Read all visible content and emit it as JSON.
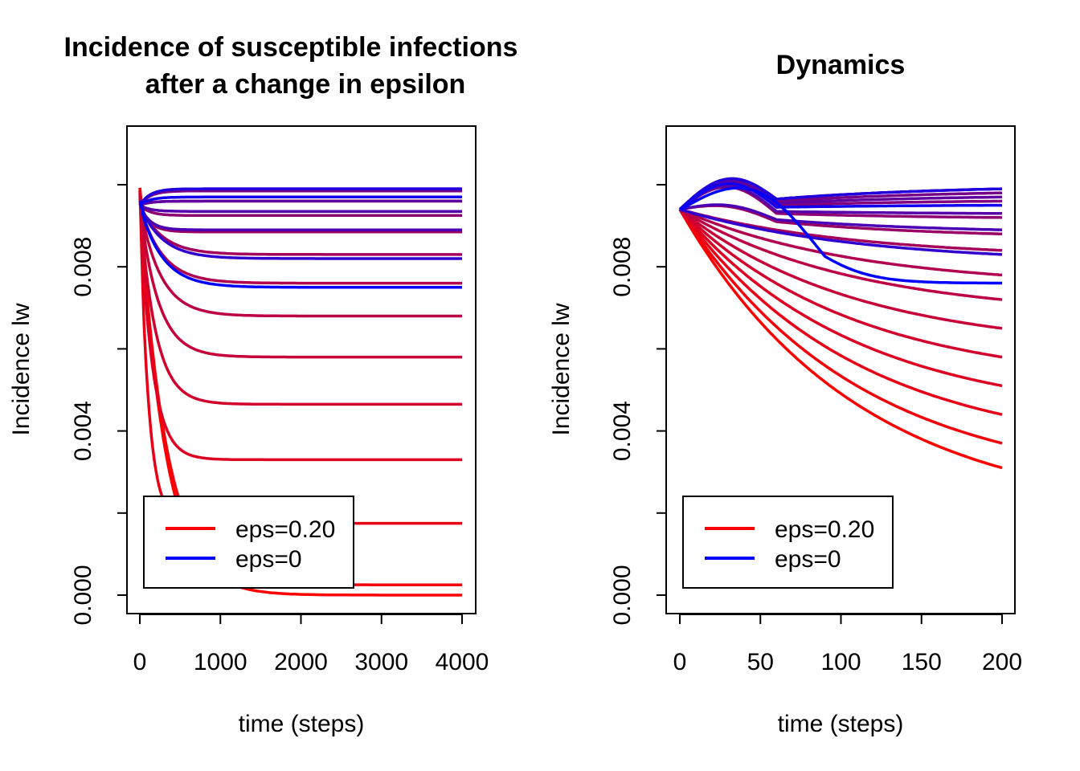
{
  "chart_data": [
    {
      "type": "line",
      "title_line1": "Incidence of susceptible infections",
      "title_line2": "after a change in epsilon",
      "xlabel": "time (steps)",
      "ylabel": "Incidence lw",
      "xlim": [
        0,
        4000
      ],
      "ylim": [
        0,
        0.01
      ],
      "x_ticks": [
        "0",
        "1000",
        "2000",
        "3000",
        "4000"
      ],
      "y_ticks": [
        "0.000",
        "0.004",
        "0.008"
      ],
      "legend": {
        "position": "bottom-left",
        "entries": [
          {
            "label": "eps=0.20",
            "color": "#FF0000"
          },
          {
            "label": "eps=0",
            "color": "#0000FF"
          }
        ]
      },
      "start_value": 0.0095,
      "final_values": [
        0.0,
        0.00025,
        0.00175,
        0.0033,
        0.00465,
        0.0058,
        0.0068,
        0.0076,
        0.0083,
        0.00885,
        0.00925,
        0.0096,
        0.00985,
        0.0099,
        0.0096,
        0.00935,
        0.0089,
        0.0082,
        0.0075,
        0.0099,
        0.0097
      ],
      "series_colors": [
        "#FF0000",
        "#F4000B",
        "#E80017",
        "#DD0022",
        "#D2002D",
        "#C60039",
        "#BB0044",
        "#B0004F",
        "#A4005B",
        "#990066",
        "#8E0071",
        "#82007D",
        "#770088",
        "#6C0093",
        "#60009F",
        "#5500AA",
        "#4A00B5",
        "#3000CF",
        "#0000FF",
        "#2000DF",
        "#1000EF"
      ]
    },
    {
      "type": "line",
      "title": "Dynamics",
      "xlabel": "time (steps)",
      "ylabel": "Incidence lw",
      "xlim": [
        0,
        200
      ],
      "ylim": [
        0,
        0.01
      ],
      "x_ticks": [
        "0",
        "50",
        "100",
        "150",
        "200"
      ],
      "y_ticks": [
        "0.000",
        "0.004",
        "0.008"
      ],
      "legend": {
        "position": "bottom-left",
        "entries": [
          {
            "label": "eps=0.20",
            "color": "#FF0000"
          },
          {
            "label": "eps=0",
            "color": "#0000FF"
          }
        ]
      },
      "start_value": 0.0094,
      "end_values": [
        0.0031,
        0.0037,
        0.0044,
        0.0051,
        0.0058,
        0.0065,
        0.0072,
        0.0078,
        0.0084,
        0.0088,
        0.0092,
        0.0096,
        0.0098,
        0.0099,
        0.0097,
        0.0093,
        0.0089,
        0.0083,
        0.0076,
        0.0099,
        0.0095
      ],
      "series_colors": [
        "#FF0000",
        "#F4000B",
        "#E80017",
        "#DD0022",
        "#D2002D",
        "#C60039",
        "#BB0044",
        "#B0004F",
        "#A4005B",
        "#990066",
        "#8E0071",
        "#82007D",
        "#770088",
        "#6C0093",
        "#60009F",
        "#5500AA",
        "#4A00B5",
        "#3000CF",
        "#0000FF",
        "#2000DF",
        "#1000EF"
      ]
    }
  ]
}
